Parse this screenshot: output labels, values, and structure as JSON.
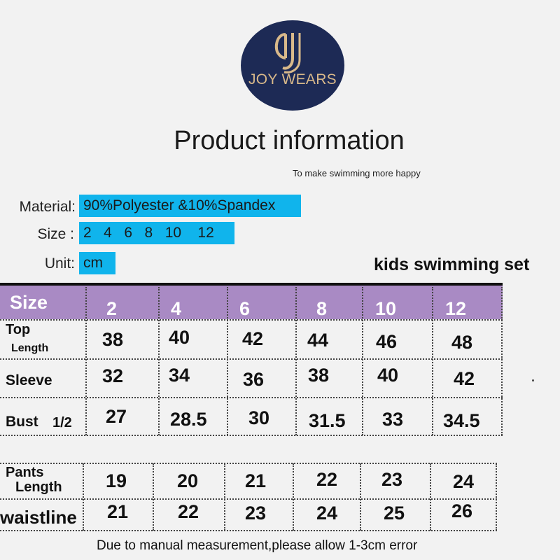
{
  "brand": {
    "logo_text": "JOY WEARS",
    "monogram": "DJ",
    "navy": "#1d2a55",
    "gold": "#d9b98a"
  },
  "title": "Product information",
  "subtitle": "To make swimming more happy",
  "specs": {
    "material_label": "Material:",
    "material_value": "90%Polyester &10%Spandex",
    "size_label": "Size :",
    "size_value": "2   4   6   8   10    12",
    "unit_label": "Unit:",
    "unit_value": "cm"
  },
  "product_name": "kids swimming set",
  "table": {
    "header_label": "Size",
    "sizes": [
      "2",
      "4",
      "6",
      "8",
      "10",
      "12"
    ],
    "top_length_line1": "Top",
    "top_length_line2": "Length",
    "top_length": [
      "38",
      "40",
      "42",
      "44",
      "46",
      "48"
    ],
    "sleeve_label": "Sleeve",
    "sleeve": [
      "32",
      "34",
      "36",
      "38",
      "40",
      "42"
    ],
    "bust_label": "Bust",
    "bust_suffix": "1/2",
    "bust": [
      "27",
      "28.5",
      "30",
      "31.5",
      "33",
      "34.5"
    ],
    "pants_line1": "Pants",
    "pants_line2": "Length",
    "pants_length": [
      "19",
      "20",
      "21",
      "22",
      "23",
      "24"
    ],
    "waist_label": "waistline",
    "waistline": [
      "21",
      "22",
      "23",
      "24",
      "25",
      "26"
    ],
    "header_color": "#a98ac4",
    "accent_blue": "#10b4ec"
  },
  "footer": "Due to manual measurement,please allow 1-3cm error"
}
